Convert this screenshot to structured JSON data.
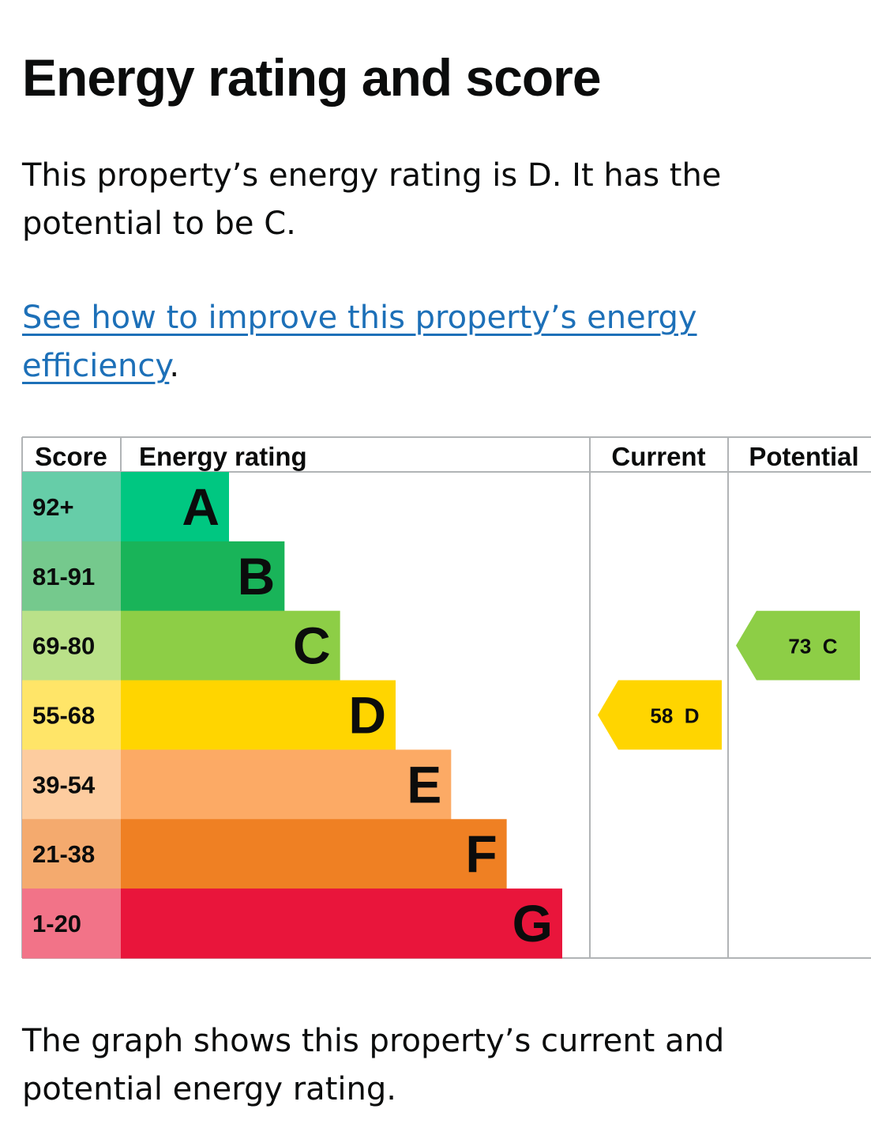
{
  "heading": "Energy rating and score",
  "summary": "This property’s energy rating is D. It has the potential to be C.",
  "improve_link": {
    "text": "See how to improve this property’s energy efficiency",
    "after": "."
  },
  "chart_headers": {
    "score": "Score",
    "energy_rating": "Energy rating",
    "current": "Current",
    "potential": "Potential"
  },
  "chart_data": {
    "type": "bar",
    "bands": [
      {
        "letter": "A",
        "score_range": "92+",
        "color": "#00c781",
        "score_bg": "#66cda8"
      },
      {
        "letter": "B",
        "score_range": "81-91",
        "color": "#19b459",
        "score_bg": "#75c98d"
      },
      {
        "letter": "C",
        "score_range": "69-80",
        "color": "#8dce46",
        "score_bg": "#bae189"
      },
      {
        "letter": "D",
        "score_range": "55-68",
        "color": "#ffd500",
        "score_bg": "#ffe568"
      },
      {
        "letter": "E",
        "score_range": "39-54",
        "color": "#fcaa65",
        "score_bg": "#fdcc9f"
      },
      {
        "letter": "F",
        "score_range": "21-38",
        "color": "#ef8023",
        "score_bg": "#f4aa6e"
      },
      {
        "letter": "G",
        "score_range": "1-20",
        "color": "#e9153b",
        "score_bg": "#f27388"
      }
    ],
    "current": {
      "score": 58,
      "rating": "D",
      "label": "58  D",
      "color": "#ffd500"
    },
    "potential": {
      "score": 73,
      "rating": "C",
      "label": "73  C",
      "color": "#8dce46"
    }
  },
  "footer_text": "The graph shows this property’s current and potential energy rating."
}
